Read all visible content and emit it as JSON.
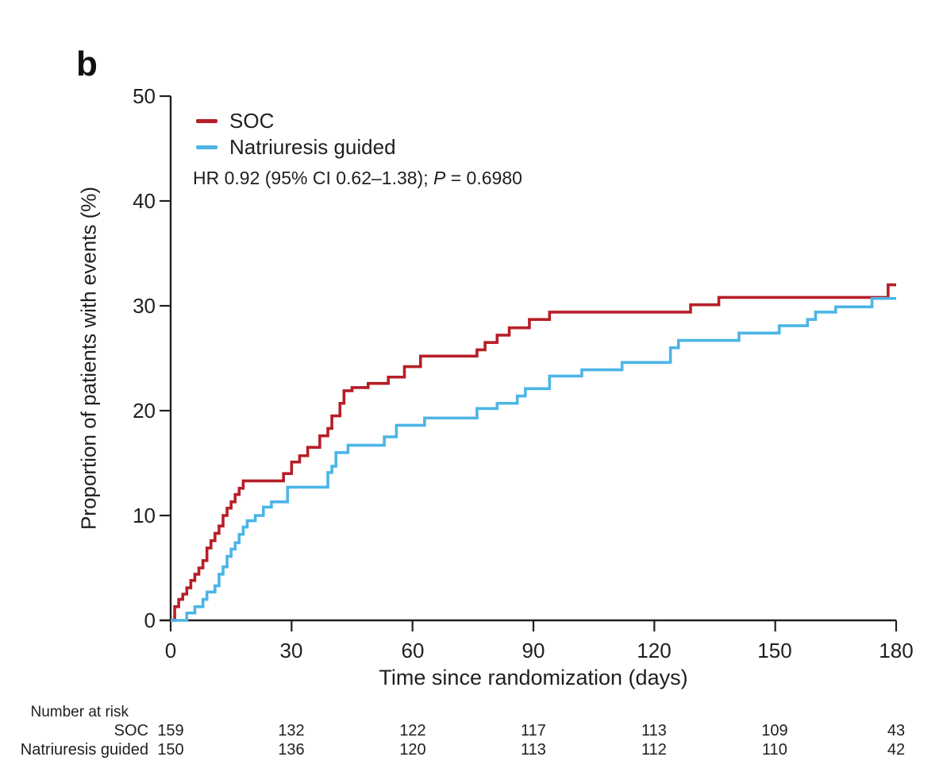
{
  "panel_label": "b",
  "legend": {
    "items": [
      {
        "label": "SOC",
        "color": "#b71e28"
      },
      {
        "label": "Natriuresis guided",
        "color": "#4cb5e6"
      }
    ]
  },
  "annotation": {
    "prefix": "HR 0.92 (95% CI 0.62–1.38); ",
    "p_symbol": "P",
    "suffix": " = 0.6980"
  },
  "chart_data": {
    "type": "line",
    "subtype": "kaplan-meier-cumulative-incidence-step",
    "title": "",
    "xlabel": "Time since randomization (days)",
    "ylabel": "Proportion of patients with events (%)",
    "xlim": [
      0,
      180
    ],
    "ylim": [
      0,
      50
    ],
    "x_ticks": [
      0,
      30,
      60,
      90,
      120,
      150,
      180
    ],
    "y_ticks": [
      0,
      10,
      20,
      30,
      40,
      50
    ],
    "grid": false,
    "legend_position": "top-left-inside",
    "annotation_text": "HR 0.92 (95% CI 0.62–1.38); P = 0.6980",
    "series": [
      {
        "name": "SOC",
        "color": "#b71e28",
        "points": [
          [
            0,
            0
          ],
          [
            1,
            1.3
          ],
          [
            2,
            2.0
          ],
          [
            3,
            2.5
          ],
          [
            4,
            3.1
          ],
          [
            5,
            3.8
          ],
          [
            6,
            4.4
          ],
          [
            7,
            5.0
          ],
          [
            8,
            5.7
          ],
          [
            9,
            6.9
          ],
          [
            10,
            7.6
          ],
          [
            11,
            8.3
          ],
          [
            12,
            9.0
          ],
          [
            13,
            10.0
          ],
          [
            14,
            10.7
          ],
          [
            15,
            11.3
          ],
          [
            16,
            12.0
          ],
          [
            17,
            12.6
          ],
          [
            18,
            13.3
          ],
          [
            28,
            14.0
          ],
          [
            30,
            15.1
          ],
          [
            32,
            15.7
          ],
          [
            34,
            16.5
          ],
          [
            37,
            17.6
          ],
          [
            39,
            18.3
          ],
          [
            40,
            19.5
          ],
          [
            42,
            20.7
          ],
          [
            43,
            21.9
          ],
          [
            45,
            22.2
          ],
          [
            49,
            22.6
          ],
          [
            54,
            23.2
          ],
          [
            58,
            24.2
          ],
          [
            62,
            25.2
          ],
          [
            76,
            25.8
          ],
          [
            78,
            26.5
          ],
          [
            81,
            27.2
          ],
          [
            84,
            27.9
          ],
          [
            89,
            28.7
          ],
          [
            94,
            29.4
          ],
          [
            129,
            30.1
          ],
          [
            136,
            30.8
          ],
          [
            178,
            32.0
          ],
          [
            180,
            32.0
          ]
        ]
      },
      {
        "name": "Natriuresis guided",
        "color": "#4cb5e6",
        "points": [
          [
            0,
            0
          ],
          [
            4,
            0.7
          ],
          [
            6,
            1.3
          ],
          [
            8,
            2.0
          ],
          [
            9,
            2.7
          ],
          [
            11,
            3.3
          ],
          [
            12,
            4.4
          ],
          [
            13,
            5.1
          ],
          [
            14,
            6.1
          ],
          [
            15,
            6.8
          ],
          [
            16,
            7.4
          ],
          [
            17,
            8.2
          ],
          [
            18,
            8.9
          ],
          [
            19,
            9.5
          ],
          [
            21,
            10.0
          ],
          [
            23,
            10.8
          ],
          [
            25,
            11.3
          ],
          [
            29,
            12.7
          ],
          [
            39,
            14.1
          ],
          [
            40,
            14.7
          ],
          [
            41,
            16.0
          ],
          [
            44,
            16.7
          ],
          [
            53,
            17.5
          ],
          [
            56,
            18.6
          ],
          [
            63,
            19.3
          ],
          [
            76,
            20.2
          ],
          [
            81,
            20.7
          ],
          [
            86,
            21.4
          ],
          [
            88,
            22.1
          ],
          [
            94,
            23.3
          ],
          [
            102,
            23.9
          ],
          [
            112,
            24.6
          ],
          [
            124,
            26.0
          ],
          [
            126,
            26.7
          ],
          [
            141,
            27.4
          ],
          [
            151,
            28.1
          ],
          [
            158,
            28.7
          ],
          [
            160,
            29.4
          ],
          [
            165,
            29.9
          ],
          [
            174,
            30.7
          ],
          [
            180,
            30.7
          ]
        ]
      }
    ]
  },
  "risk_table": {
    "title": "Number at risk",
    "time_points": [
      0,
      30,
      60,
      90,
      120,
      150,
      180
    ],
    "rows": [
      {
        "label": "SOC",
        "values": [
          159,
          132,
          122,
          117,
          113,
          109,
          43
        ]
      },
      {
        "label": "Natriuresis guided",
        "values": [
          150,
          136,
          120,
          113,
          112,
          110,
          42
        ]
      }
    ]
  }
}
